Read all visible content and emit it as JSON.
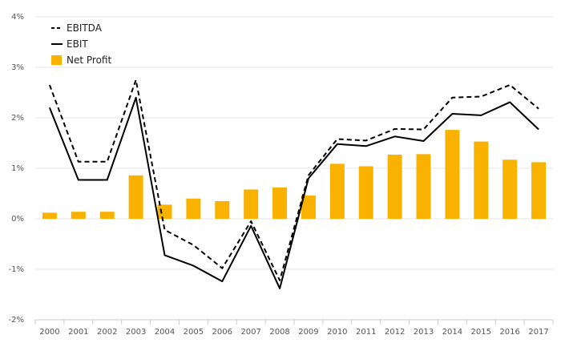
{
  "chart_data": {
    "type": "bar",
    "categories": [
      "2000",
      "2001",
      "2002",
      "2003",
      "2004",
      "2005",
      "2006",
      "2007",
      "2008",
      "2009",
      "2010",
      "2011",
      "2012",
      "2013",
      "2014",
      "2015",
      "2016",
      "2017"
    ],
    "series": [
      {
        "name": "EBITDA",
        "type": "line",
        "style": "dashed",
        "color": "#000000",
        "values": [
          2.65,
          1.13,
          1.13,
          2.75,
          -0.22,
          -0.52,
          -0.98,
          -0.05,
          -1.22,
          0.86,
          1.58,
          1.55,
          1.78,
          1.77,
          2.4,
          2.42,
          2.65,
          2.18
        ]
      },
      {
        "name": "EBIT",
        "type": "line",
        "style": "solid",
        "color": "#000000",
        "values": [
          2.2,
          0.77,
          0.77,
          2.4,
          -0.72,
          -0.93,
          -1.24,
          -0.14,
          -1.38,
          0.8,
          1.48,
          1.44,
          1.63,
          1.54,
          2.08,
          2.05,
          2.31,
          1.77
        ]
      },
      {
        "name": "Net Profit",
        "type": "bar",
        "color": "#FAB200",
        "values": [
          0.12,
          0.14,
          0.14,
          0.86,
          0.28,
          0.4,
          0.35,
          0.58,
          0.62,
          0.46,
          1.09,
          1.04,
          1.27,
          1.28,
          1.76,
          1.53,
          1.17,
          1.12
        ]
      }
    ],
    "y_ticks": [
      "-2%",
      "-1%",
      "0%",
      "1%",
      "2%",
      "3%",
      "4%"
    ],
    "ylim": [
      -2,
      4
    ],
    "title": "",
    "xlabel": "",
    "ylabel": "",
    "grid": true,
    "legend_position": "top-left"
  }
}
